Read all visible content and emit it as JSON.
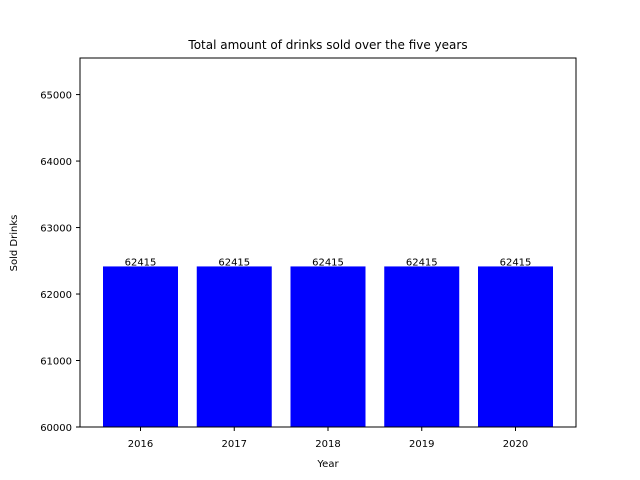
{
  "chart_data": {
    "type": "bar",
    "title": "Total amount of drinks sold over the five years",
    "xlabel": "Year",
    "ylabel": "Sold Drinks",
    "categories": [
      "2016",
      "2017",
      "2018",
      "2019",
      "2020"
    ],
    "values": [
      62415,
      62415,
      62415,
      62415,
      62415
    ],
    "data_labels": [
      "62415",
      "62415",
      "62415",
      "62415",
      "62415"
    ],
    "ylim": [
      60000,
      65550
    ],
    "yticks": [
      60000,
      61000,
      62000,
      63000,
      64000,
      65000
    ],
    "ytick_labels": [
      "60000",
      "61000",
      "62000",
      "63000",
      "64000",
      "65000"
    ],
    "bar_color": "#0000ff",
    "grid": false,
    "legend": "none"
  }
}
